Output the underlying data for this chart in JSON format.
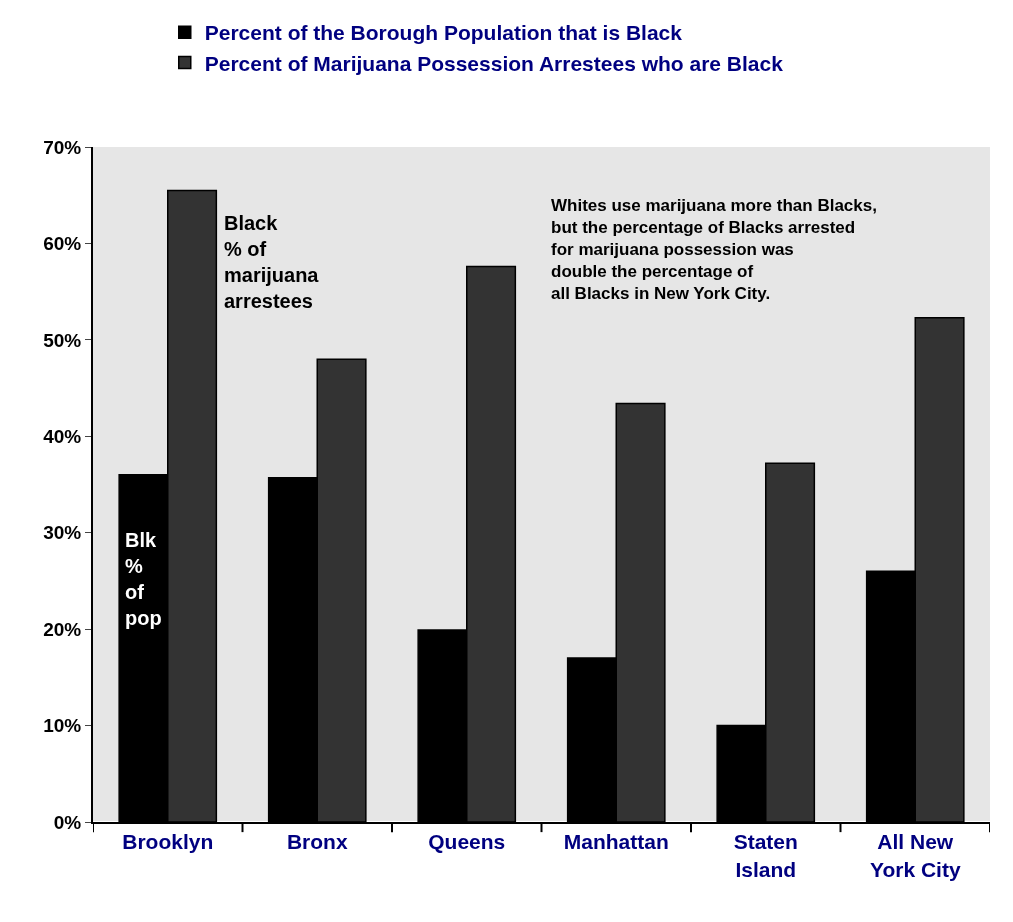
{
  "chart_data": {
    "type": "bar",
    "categories": [
      "Brooklyn",
      "Bronx",
      "Queens",
      "Manhattan",
      "Staten\nIsland",
      "All New\nYork City"
    ],
    "series": [
      {
        "name": "Percent of the Borough Population that is Black",
        "color": "#000000",
        "values": [
          36.0,
          35.7,
          19.9,
          17.0,
          10.0,
          26.0
        ]
      },
      {
        "name": "Percent of Marijuana Possession Arrestees who are Black",
        "color": "#333333",
        "values": [
          65.5,
          48.0,
          57.6,
          43.4,
          37.2,
          52.3
        ]
      }
    ],
    "ylim": [
      0,
      70
    ],
    "yticks": [
      {
        "value": 0,
        "label": "0%"
      },
      {
        "value": 10,
        "label": "10%"
      },
      {
        "value": 20,
        "label": "20%"
      },
      {
        "value": 30,
        "label": "30%"
      },
      {
        "value": 40,
        "label": "40%"
      },
      {
        "value": 50,
        "label": "50%"
      },
      {
        "value": 60,
        "label": "60%"
      },
      {
        "value": 70,
        "label": "70%"
      }
    ],
    "grid": false,
    "legend": "top",
    "annotations": [
      "Black\n% of\nmarijuana\narrestees",
      "Blk\n%\nof\npop",
      "Whites use marijuana more than Blacks,\nbut the percentage of Blacks arrested\nfor marijuana possession was\ndouble the percentage of\nall Blacks in New York City."
    ]
  }
}
